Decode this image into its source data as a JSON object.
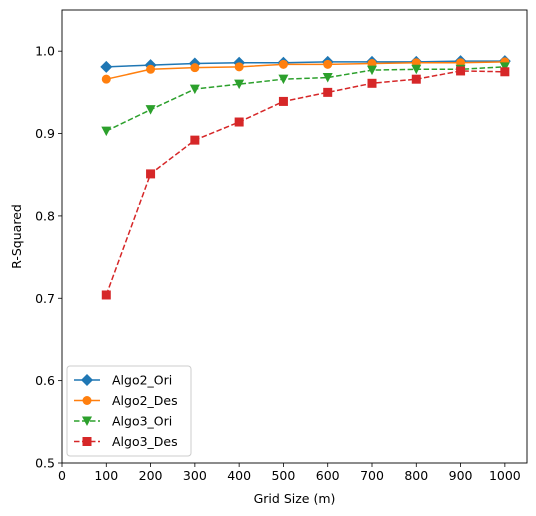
{
  "chart_data": {
    "type": "line",
    "title": "",
    "xlabel": "Grid Size (m)",
    "ylabel": "R-Squared",
    "xlim": [
      0,
      1050
    ],
    "ylim": [
      0.5,
      1.05
    ],
    "xticks": [
      0,
      100,
      200,
      300,
      400,
      500,
      600,
      700,
      800,
      900,
      1000
    ],
    "yticks": [
      0.5,
      0.6,
      0.7,
      0.8,
      0.9,
      1.0
    ],
    "xtick_labels": [
      "0",
      "100",
      "200",
      "300",
      "400",
      "500",
      "600",
      "700",
      "800",
      "900",
      "1000"
    ],
    "ytick_labels": [
      "0.5",
      "0.6",
      "0.7",
      "0.8",
      "0.9",
      "1.0"
    ],
    "grid": false,
    "legend_position": "lower-left",
    "x": [
      100,
      200,
      300,
      400,
      500,
      600,
      700,
      800,
      900,
      1000
    ],
    "series": [
      {
        "name": "Algo2_Ori",
        "values": [
          0.981,
          0.983,
          0.985,
          0.986,
          0.986,
          0.987,
          0.987,
          0.987,
          0.988,
          0.988
        ],
        "color": "#1f77b4",
        "marker": "diamond",
        "linestyle": "solid"
      },
      {
        "name": "Algo2_Des",
        "values": [
          0.966,
          0.978,
          0.98,
          0.981,
          0.984,
          0.984,
          0.985,
          0.986,
          0.986,
          0.987
        ],
        "color": "#ff7f0e",
        "marker": "circle",
        "linestyle": "solid"
      },
      {
        "name": "Algo3_Ori",
        "values": [
          0.903,
          0.929,
          0.954,
          0.96,
          0.966,
          0.968,
          0.977,
          0.978,
          0.978,
          0.981
        ],
        "color": "#2ca02c",
        "marker": "triangle-down",
        "linestyle": "dashed"
      },
      {
        "name": "Algo3_Des",
        "values": [
          0.704,
          0.851,
          0.892,
          0.914,
          0.939,
          0.95,
          0.961,
          0.966,
          0.976,
          0.975
        ],
        "color": "#d62728",
        "marker": "square",
        "linestyle": "dashed"
      }
    ]
  }
}
